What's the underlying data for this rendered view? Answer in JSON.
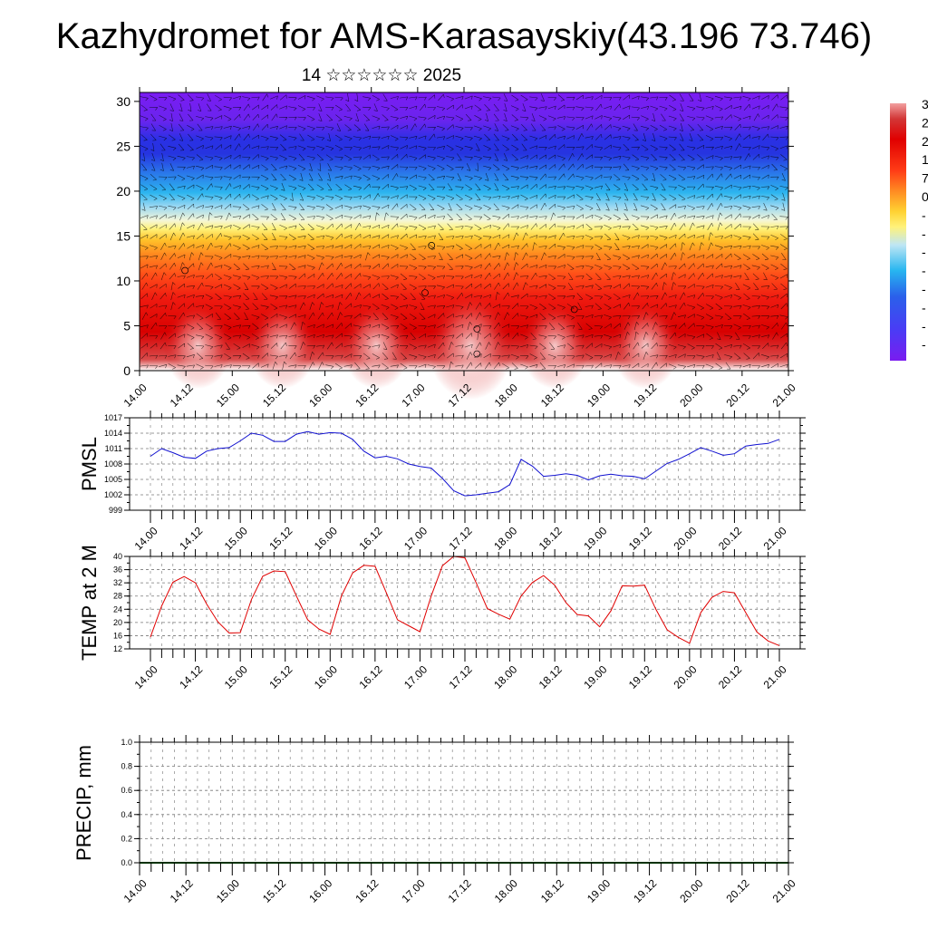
{
  "header": {
    "title": "Kazhydromet for AMS-Karasayskiy(43.196 73.746)",
    "subtitle": "14 ☆☆☆☆☆☆ 2025"
  },
  "colors": {
    "pmsl_line": "#1010d0",
    "temp_line": "#e00000",
    "precip_line": "#006400",
    "colorbar_stops": [
      "#7a1cf0",
      "#4a3cf5",
      "#2a40e8",
      "#2f7df2",
      "#27b6f0",
      "#bfe6f4",
      "#fff27a",
      "#ffd232",
      "#ff9a22",
      "#ff3b16",
      "#e00000",
      "#d23636",
      "#f2a0a0"
    ]
  },
  "colorbar": {
    "labels": [
      "3",
      "2",
      "2",
      "1",
      "7",
      "0",
      "-",
      "-",
      "-",
      "-",
      "-",
      "-",
      "-",
      "-"
    ]
  },
  "chart_data": [
    {
      "type": "heatmap",
      "name_hint": "vertical cross-section with wind barbs",
      "x_ticks": [
        "14.00",
        "14.12",
        "15.00",
        "15.12",
        "16.00",
        "16.12",
        "17.00",
        "17.12",
        "18.00",
        "18.12",
        "19.00",
        "19.12",
        "20.00",
        "20.12",
        "21.00"
      ],
      "y_ticks": [
        "0",
        "5",
        "10",
        "15",
        "20",
        "25",
        "30"
      ],
      "ylim": [
        0,
        31
      ]
    },
    {
      "type": "line",
      "ylabel": "PMSL",
      "x_ticks": [
        "14.00",
        "14.12",
        "15.00",
        "15.12",
        "16.00",
        "16.12",
        "17.00",
        "17.12",
        "18.00",
        "18.12",
        "19.00",
        "19.12",
        "20.00",
        "20.12",
        "21.00"
      ],
      "y_ticks": [
        "1017",
        "1014",
        "1011",
        "1008",
        "1005",
        "1002",
        "999"
      ],
      "ylim": [
        999,
        1017
      ],
      "x": [
        0,
        3,
        6,
        9,
        12,
        15,
        18,
        21,
        24,
        27,
        30,
        33,
        36,
        39,
        42,
        45,
        48,
        51,
        54,
        57,
        60,
        63,
        66,
        69,
        72,
        75,
        78,
        81,
        84,
        87,
        90,
        93,
        96,
        99,
        102,
        105,
        108,
        111,
        114,
        117,
        120,
        123,
        126,
        129,
        132,
        135,
        138,
        141,
        144,
        147,
        150,
        153,
        156,
        159,
        162,
        165,
        168
      ],
      "values": [
        1009.5,
        1011,
        1010.2,
        1009.3,
        1009.1,
        1010.5,
        1011,
        1011.2,
        1012.5,
        1014,
        1013.6,
        1012.4,
        1012.4,
        1013.8,
        1014.3,
        1013.8,
        1014.1,
        1014,
        1012.8,
        1010.5,
        1009.2,
        1009.5,
        1009,
        1008,
        1007.5,
        1007.2,
        1005.2,
        1002.8,
        1001.8,
        1002,
        1002.3,
        1002.6,
        1004,
        1008.9,
        1007.6,
        1005.6,
        1005.8,
        1006.1,
        1005.8,
        1004.9,
        1005.7,
        1006,
        1005.7,
        1005.6,
        1005.1,
        1006.6,
        1008.1,
        1008.9,
        1010,
        1011.2,
        1010.5,
        1009.7,
        1010,
        1011.5,
        1011.8,
        1012,
        1012.8
      ]
    },
    {
      "type": "line",
      "ylabel": "TEMP at 2 M",
      "x_ticks": [
        "14.00",
        "14.12",
        "15.00",
        "15.12",
        "16.00",
        "16.12",
        "17.00",
        "17.12",
        "18.00",
        "18.12",
        "19.00",
        "19.12",
        "20.00",
        "20.12",
        "21.00"
      ],
      "y_ticks": [
        "40",
        "36",
        "32",
        "28",
        "24",
        "20",
        "16",
        "12"
      ],
      "ylim": [
        12,
        40
      ],
      "x": [
        0,
        3,
        6,
        9,
        12,
        15,
        18,
        21,
        24,
        27,
        30,
        33,
        36,
        39,
        42,
        45,
        48,
        51,
        54,
        57,
        60,
        63,
        66,
        69,
        72,
        75,
        78,
        81,
        84,
        87,
        90,
        93,
        96,
        99,
        102,
        105,
        108,
        111,
        114,
        117,
        120,
        123,
        126,
        129,
        132,
        135,
        138,
        141,
        144,
        147,
        150,
        153,
        156,
        159,
        162,
        165,
        168
      ],
      "values": [
        15.6,
        25,
        32.2,
        33.9,
        32,
        25.6,
        20.2,
        16.8,
        16.9,
        27,
        34,
        35.6,
        35.4,
        28,
        20.8,
        18,
        16.4,
        28,
        35,
        37.3,
        37,
        29,
        20.8,
        19,
        17.2,
        28,
        37.2,
        40,
        39.6,
        32,
        24.2,
        22.5,
        21,
        28,
        32.1,
        34.2,
        31.3,
        26,
        22.4,
        22,
        18.7,
        23.5,
        31.1,
        31,
        31.3,
        24,
        17.8,
        15.5,
        13.7,
        23,
        27.6,
        29.4,
        29,
        23,
        17.1,
        14.4,
        13
      ]
    },
    {
      "type": "line",
      "ylabel": "PRECIP, mm",
      "x_ticks": [
        "14.00",
        "14.12",
        "15.00",
        "15.12",
        "16.00",
        "16.12",
        "17.00",
        "17.12",
        "18.00",
        "18.12",
        "19.00",
        "19.12",
        "20.00",
        "20.12",
        "21.00"
      ],
      "y_ticks": [
        "1.0",
        "0.8",
        "0.6",
        "0.4",
        "0.2",
        "0.0"
      ],
      "ylim": [
        0,
        1
      ],
      "x": [
        0,
        168
      ],
      "values": [
        0,
        0
      ]
    }
  ]
}
